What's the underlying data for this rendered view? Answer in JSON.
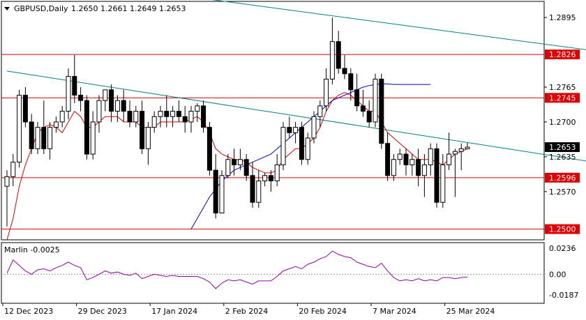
{
  "header": {
    "symbol": "GBPUSD,Daily",
    "ohlc": "1.2650 1.2661 1.2649 1.2653"
  },
  "indicator": {
    "label": "Marlin -0.0025",
    "ticks": [
      "0.0236",
      "0.00",
      "-0.0187"
    ],
    "ylim": [
      -0.0187,
      0.0236
    ]
  },
  "colors": {
    "bull": "#ffffff",
    "bear": "#000000",
    "ma_fast": "#e00000",
    "ma_slow": "#0000d0",
    "trend": "#008080",
    "level": "#e00000",
    "oscillator": "#9400a0"
  },
  "chart_data": {
    "type": "candlestick",
    "symbol": "GBPUSD",
    "timeframe": "Daily",
    "ylim": [
      1.248,
      1.2925
    ],
    "y_ticks": [
      "1.2895",
      "1.2765",
      "1.2700",
      "1.2635",
      "1.2570"
    ],
    "x_ticks": [
      "12 Dec 2023",
      "29 Dec 2023",
      "17 Jan 2024",
      "2 Feb 2024",
      "20 Feb 2024",
      "7 Mar 2024",
      "25 Mar 2024"
    ],
    "levels": [
      {
        "value": 1.2826,
        "label": "1.2826"
      },
      {
        "value": 1.2745,
        "label": "1.2745"
      },
      {
        "value": 1.2596,
        "label": "1.2596"
      },
      {
        "value": 1.25,
        "label": "1.2500"
      }
    ],
    "current_price": {
      "value": 1.2653,
      "label": "1.2653"
    },
    "candles": [
      [
        1.258,
        1.261,
        1.2505,
        1.2598
      ],
      [
        1.2598,
        1.264,
        1.258,
        1.2625
      ],
      [
        1.2625,
        1.276,
        1.2615,
        1.275
      ],
      [
        1.275,
        1.2765,
        1.269,
        1.27
      ],
      [
        1.27,
        1.2715,
        1.264,
        1.265
      ],
      [
        1.265,
        1.27,
        1.264,
        1.269
      ],
      [
        1.269,
        1.274,
        1.264,
        1.265
      ],
      [
        1.265,
        1.27,
        1.263,
        1.269
      ],
      [
        1.269,
        1.271,
        1.268,
        1.27
      ],
      [
        1.27,
        1.273,
        1.269,
        1.272
      ],
      [
        1.272,
        1.28,
        1.2705,
        1.2785
      ],
      [
        1.2785,
        1.2825,
        1.2735,
        1.275
      ],
      [
        1.275,
        1.2765,
        1.272,
        1.274
      ],
      [
        1.274,
        1.275,
        1.263,
        1.264
      ],
      [
        1.264,
        1.272,
        1.263,
        1.27
      ],
      [
        1.27,
        1.275,
        1.268,
        1.274
      ],
      [
        1.274,
        1.276,
        1.272,
        1.276
      ],
      [
        1.276,
        1.277,
        1.27,
        1.272
      ],
      [
        1.272,
        1.275,
        1.27,
        1.274
      ],
      [
        1.274,
        1.276,
        1.27,
        1.272
      ],
      [
        1.272,
        1.274,
        1.269,
        1.27
      ],
      [
        1.27,
        1.273,
        1.269,
        1.272
      ],
      [
        1.272,
        1.274,
        1.264,
        1.265
      ],
      [
        1.265,
        1.27,
        1.262,
        1.269
      ],
      [
        1.269,
        1.272,
        1.268,
        1.271
      ],
      [
        1.271,
        1.273,
        1.269,
        1.272
      ],
      [
        1.272,
        1.275,
        1.269,
        1.271
      ],
      [
        1.271,
        1.273,
        1.269,
        1.272
      ],
      [
        1.272,
        1.274,
        1.27,
        1.271
      ],
      [
        1.271,
        1.273,
        1.268,
        1.27
      ],
      [
        1.27,
        1.273,
        1.268,
        1.272
      ],
      [
        1.272,
        1.2735,
        1.27,
        1.273
      ],
      [
        1.273,
        1.274,
        1.268,
        1.269
      ],
      [
        1.269,
        1.27,
        1.26,
        1.261
      ],
      [
        1.261,
        1.264,
        1.252,
        1.253
      ],
      [
        1.253,
        1.261,
        1.253,
        1.26
      ],
      [
        1.26,
        1.264,
        1.2595,
        1.263
      ],
      [
        1.263,
        1.265,
        1.26,
        1.262
      ],
      [
        1.262,
        1.265,
        1.261,
        1.263
      ],
      [
        1.263,
        1.264,
        1.259,
        1.26
      ],
      [
        1.26,
        1.2625,
        1.254,
        1.255
      ],
      [
        1.255,
        1.261,
        1.254,
        1.259
      ],
      [
        1.259,
        1.2605,
        1.258,
        1.26
      ],
      [
        1.26,
        1.261,
        1.257,
        1.259
      ],
      [
        1.259,
        1.264,
        1.258,
        1.262
      ],
      [
        1.262,
        1.27,
        1.261,
        1.269
      ],
      [
        1.269,
        1.271,
        1.267,
        1.268
      ],
      [
        1.268,
        1.27,
        1.266,
        1.269
      ],
      [
        1.269,
        1.27,
        1.262,
        1.263
      ],
      [
        1.263,
        1.268,
        1.262,
        1.267
      ],
      [
        1.267,
        1.272,
        1.266,
        1.271
      ],
      [
        1.271,
        1.274,
        1.269,
        1.273
      ],
      [
        1.273,
        1.28,
        1.272,
        1.278
      ],
      [
        1.278,
        1.2895,
        1.277,
        1.285
      ],
      [
        1.285,
        1.287,
        1.279,
        1.28
      ],
      [
        1.28,
        1.2825,
        1.278,
        1.279
      ],
      [
        1.279,
        1.28,
        1.274,
        1.276
      ],
      [
        1.276,
        1.279,
        1.272,
        1.273
      ],
      [
        1.273,
        1.276,
        1.271,
        1.272
      ],
      [
        1.272,
        1.274,
        1.269,
        1.27
      ],
      [
        1.27,
        1.279,
        1.269,
        1.278
      ],
      [
        1.278,
        1.279,
        1.265,
        1.266
      ],
      [
        1.266,
        1.268,
        1.259,
        1.26
      ],
      [
        1.26,
        1.264,
        1.259,
        1.263
      ],
      [
        1.263,
        1.265,
        1.262,
        1.264
      ],
      [
        1.264,
        1.265,
        1.26,
        1.262
      ],
      [
        1.262,
        1.264,
        1.26,
        1.263
      ],
      [
        1.263,
        1.265,
        1.258,
        1.26
      ],
      [
        1.26,
        1.264,
        1.256,
        1.262
      ],
      [
        1.262,
        1.266,
        1.26,
        1.265
      ],
      [
        1.265,
        1.266,
        1.254,
        1.255
      ],
      [
        1.255,
        1.264,
        1.254,
        1.262
      ],
      [
        1.262,
        1.268,
        1.261,
        1.264
      ],
      [
        1.264,
        1.265,
        1.256,
        1.2645
      ],
      [
        1.2645,
        1.266,
        1.261,
        1.265
      ],
      [
        1.265,
        1.2661,
        1.2649,
        1.2653
      ]
    ],
    "ma_fast": [
      1.248,
      1.252,
      1.258,
      1.262,
      1.265,
      1.268,
      1.269,
      1.2695,
      1.269,
      1.268,
      1.27,
      1.272,
      1.271,
      1.269,
      1.269,
      1.27,
      1.271,
      1.271,
      1.271,
      1.27,
      1.27,
      1.27,
      1.269,
      1.269,
      1.269,
      1.27,
      1.27,
      1.27,
      1.27,
      1.27,
      1.2705,
      1.271,
      1.27,
      1.268,
      1.265,
      1.264,
      1.2635,
      1.263,
      1.263,
      1.2625,
      1.2615,
      1.261,
      1.2605,
      1.2605,
      1.261,
      1.263,
      1.264,
      1.265,
      1.265,
      1.266,
      1.267,
      1.269,
      1.272,
      1.274,
      1.275,
      1.2755,
      1.275,
      1.274,
      1.273,
      1.272,
      1.272,
      1.27,
      1.268,
      1.267,
      1.266,
      1.265,
      1.264,
      1.263,
      1.263,
      1.263,
      1.2625,
      1.262,
      1.263,
      1.264,
      1.2645,
      1.265
    ],
    "ma_slow": [
      null,
      null,
      null,
      null,
      null,
      null,
      null,
      null,
      null,
      null,
      null,
      null,
      null,
      null,
      null,
      null,
      null,
      null,
      null,
      null,
      null,
      null,
      null,
      null,
      null,
      null,
      null,
      null,
      null,
      null,
      1.25,
      1.252,
      1.254,
      1.256,
      1.2575,
      1.259,
      1.26,
      1.261,
      1.2615,
      1.262,
      1.2625,
      1.263,
      1.2635,
      1.264,
      1.265,
      1.266,
      1.267,
      1.268,
      1.269,
      1.27,
      1.271,
      1.272,
      1.273,
      1.274,
      1.2745,
      1.275,
      1.2755,
      1.276,
      1.2765,
      1.2768,
      1.277,
      1.2771,
      1.2771,
      1.277,
      1.277,
      1.277,
      1.277,
      1.277,
      1.277,
      1.277
    ],
    "oscillator": [
      0.001,
      0.013,
      0.008,
      0.003,
      0.0,
      0.004,
      0.005,
      0.003,
      0.006,
      0.008,
      0.011,
      0.008,
      0.006,
      -0.005,
      -0.003,
      0.0,
      0.003,
      0.001,
      0.002,
      0.0,
      -0.001,
      0.001,
      -0.004,
      -0.002,
      0.0,
      -0.001,
      -0.002,
      -0.001,
      -0.002,
      -0.002,
      -0.002,
      -0.002,
      -0.004,
      -0.007,
      -0.013,
      -0.008,
      -0.005,
      -0.006,
      -0.005,
      -0.007,
      -0.009,
      -0.006,
      -0.006,
      -0.006,
      -0.002,
      0.003,
      0.005,
      0.007,
      0.005,
      0.009,
      0.011,
      0.014,
      0.016,
      0.021,
      0.018,
      0.016,
      0.015,
      0.011,
      0.009,
      0.007,
      0.006,
      0.01,
      0.003,
      -0.003,
      -0.006,
      -0.005,
      -0.006,
      -0.004,
      -0.006,
      -0.005,
      -0.006,
      -0.003,
      -0.003,
      -0.004,
      -0.003,
      -0.0025
    ],
    "trendlines": [
      {
        "x0": 0,
        "y0": 1.2795,
        "x1": 104,
        "y1": 1.261
      },
      {
        "x0": 29,
        "y0": 1.2935,
        "x1": 104,
        "y1": 1.282
      }
    ]
  }
}
